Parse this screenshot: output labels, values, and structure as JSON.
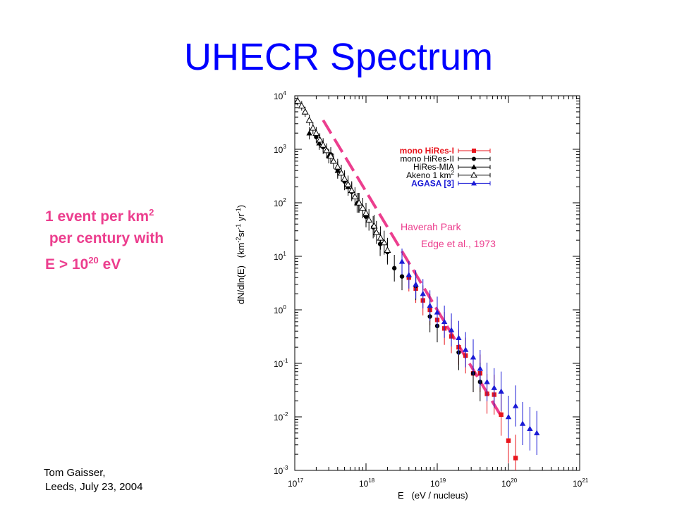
{
  "slide": {
    "title": "UHECR Spectrum",
    "callout": {
      "line1": "1 event per km",
      "line1_sup": "2",
      "line2": " per century with",
      "line3_pre": "E > 10",
      "line3_sup": "20",
      "line3_post": " eV"
    },
    "footer": {
      "line1": "Tom Gaisser,",
      "line2": "Leeds, July 23, 2004"
    }
  },
  "chart_data": {
    "type": "scatter",
    "x_scale": "log",
    "y_scale": "log",
    "xlim": [
      1e+17,
      1e+21
    ],
    "ylim": [
      0.001,
      10000
    ],
    "xlabel": "E   (eV / nucleus)",
    "ylabel": "dN/dln(E)   (km^-2 sr^-1 yr^-1)",
    "ylabel_parts": {
      "base": "dN/dln(E)   (km",
      "exp1": "-2",
      "mid1": "sr",
      "exp2": "-1",
      "mid2": " yr",
      "exp3": "-1",
      "end": ")"
    },
    "x_ticks": [
      {
        "base": "10",
        "exp": "17",
        "value": 1e+17
      },
      {
        "base": "10",
        "exp": "18",
        "value": 1e+18
      },
      {
        "base": "10",
        "exp": "19",
        "value": 1e+19
      },
      {
        "base": "10",
        "exp": "20",
        "value": 1e+20
      },
      {
        "base": "10",
        "exp": "21",
        "value": 1e+21
      }
    ],
    "y_ticks": [
      {
        "base": "10",
        "exp": "4",
        "value": 10000
      },
      {
        "base": "10",
        "exp": "3",
        "value": 1000
      },
      {
        "base": "10",
        "exp": "2",
        "value": 100
      },
      {
        "base": "10",
        "exp": "1",
        "value": 10
      },
      {
        "base": "10",
        "exp": "0",
        "value": 1
      },
      {
        "base": "10",
        "exp": "-1",
        "value": 0.1
      },
      {
        "base": "10",
        "exp": "-2",
        "value": 0.01
      },
      {
        "base": "10",
        "exp": "-3",
        "value": 0.001
      }
    ],
    "grid": false,
    "legend_position": "top-right",
    "legend": [
      {
        "label": "mono HiRes-I",
        "sup": "",
        "color": "#e8141c",
        "marker": "square"
      },
      {
        "label": "mono HiRes-II",
        "sup": "",
        "color": "#000000",
        "marker": "circle"
      },
      {
        "label": "HiRes-MIA",
        "sup": "",
        "color": "#000000",
        "marker": "triangle"
      },
      {
        "label": "Akeno 1 km",
        "sup": "2",
        "color": "#000000",
        "marker": "open-triangle"
      },
      {
        "label": "AGASA [3]",
        "sup": "",
        "color": "#1b1bd6",
        "marker": "triangle"
      }
    ],
    "annotation": {
      "line1": "Haverah Park",
      "line2": "Edge et al., 1973",
      "color": "#ec3e8e"
    },
    "fit_line": {
      "name": "Haverah Park",
      "style": "dashed",
      "color": "#ec3e8e",
      "points": [
        [
          2.5e+17,
          3500
        ],
        [
          8e+19,
          0.01
        ]
      ]
    },
    "series": [
      {
        "name": "mono HiRes-I",
        "color": "#e8141c",
        "marker": "square",
        "points": [
          [
            4e+18,
            4.0
          ],
          [
            5e+18,
            2.5
          ],
          [
            6.3e+18,
            1.5
          ],
          [
            7.9e+18,
            1.0
          ],
          [
            1e+19,
            0.65
          ],
          [
            1.26e+19,
            0.45
          ],
          [
            1.58e+19,
            0.32
          ],
          [
            2e+19,
            0.2
          ],
          [
            2.5e+19,
            0.14
          ],
          [
            3.2e+19,
            0.065
          ],
          [
            4e+19,
            0.065
          ],
          [
            5e+19,
            0.027
          ],
          [
            6.3e+19,
            0.026
          ],
          [
            7.9e+19,
            0.011
          ],
          [
            1e+20,
            0.0036
          ],
          [
            1.26e+20,
            0.0017
          ]
        ]
      },
      {
        "name": "mono HiRes-II",
        "color": "#000000",
        "marker": "circle",
        "points": [
          [
            2e+17,
            1700
          ],
          [
            2.5e+17,
            1100
          ],
          [
            3.2e+17,
            800
          ],
          [
            4e+17,
            420
          ],
          [
            5e+17,
            250
          ],
          [
            6.3e+17,
            160
          ],
          [
            7.9e+17,
            100
          ],
          [
            1e+18,
            55
          ],
          [
            1.26e+18,
            35
          ],
          [
            1.58e+18,
            17
          ],
          [
            2e+18,
            12
          ],
          [
            2.5e+18,
            6
          ],
          [
            3.2e+18,
            4.2
          ],
          [
            5e+18,
            2.8
          ],
          [
            7.9e+18,
            0.75
          ],
          [
            1e+19,
            0.5
          ],
          [
            2e+19,
            0.16
          ],
          [
            3.2e+19,
            0.065
          ],
          [
            4e+19,
            0.045
          ]
        ]
      },
      {
        "name": "HiRes-MIA",
        "color": "#000000",
        "marker": "triangle",
        "points": [
          [
            1.6e+17,
            2000
          ],
          [
            2.2e+17,
            1300
          ],
          [
            3e+17,
            750
          ],
          [
            4e+17,
            400
          ],
          [
            5.6e+17,
            200
          ],
          [
            7.5e+17,
            100
          ],
          [
            1e+18,
            60
          ]
        ]
      },
      {
        "name": "Akeno 1 km2",
        "color": "#000000",
        "marker": "open-triangle",
        "points": [
          [
            1.1e+17,
            8000
          ],
          [
            1.25e+17,
            6500
          ],
          [
            1.4e+17,
            5000
          ],
          [
            1.6e+17,
            3500
          ],
          [
            1.8e+17,
            2500
          ],
          [
            2e+17,
            2000
          ],
          [
            2.25e+17,
            1500
          ],
          [
            2.5e+17,
            1200
          ],
          [
            2.8e+17,
            950
          ],
          [
            3.2e+17,
            750
          ],
          [
            3.5e+17,
            600
          ],
          [
            4e+17,
            470
          ],
          [
            4.5e+17,
            360
          ],
          [
            5e+17,
            280
          ],
          [
            5.6e+17,
            220
          ],
          [
            6.3e+17,
            170
          ],
          [
            7e+17,
            130
          ],
          [
            8e+17,
            100
          ],
          [
            9e+17,
            80
          ],
          [
            1e+18,
            64
          ],
          [
            1.1e+18,
            48
          ],
          [
            1.3e+18,
            37
          ],
          [
            1.4e+18,
            28
          ],
          [
            1.6e+18,
            22
          ],
          [
            1.8e+18,
            18
          ],
          [
            2e+18,
            13
          ]
        ]
      },
      {
        "name": "AGASA [3]",
        "color": "#1b1bd6",
        "marker": "triangle",
        "points": [
          [
            3.2e+18,
            8
          ],
          [
            4e+18,
            4.5
          ],
          [
            5e+18,
            3
          ],
          [
            6.3e+18,
            2
          ],
          [
            7.9e+18,
            1.2
          ],
          [
            1e+19,
            0.9
          ],
          [
            1.26e+19,
            0.6
          ],
          [
            1.58e+19,
            0.42
          ],
          [
            2e+19,
            0.3
          ],
          [
            2.5e+19,
            0.18
          ],
          [
            3.2e+19,
            0.13
          ],
          [
            4e+19,
            0.08
          ],
          [
            5e+19,
            0.045
          ],
          [
            6.3e+19,
            0.035
          ],
          [
            7.9e+19,
            0.03
          ],
          [
            1e+20,
            0.01
          ],
          [
            1.26e+20,
            0.016
          ],
          [
            1.58e+20,
            0.0075
          ],
          [
            2e+20,
            0.006
          ],
          [
            2.5e+20,
            0.005
          ]
        ]
      }
    ]
  }
}
